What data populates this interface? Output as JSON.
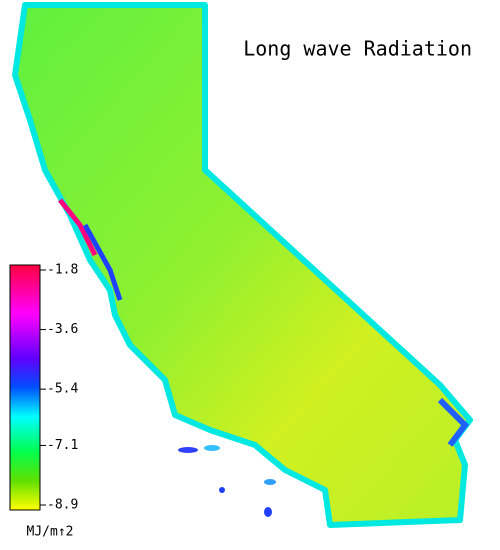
{
  "title": "Long wave Radiation",
  "colorbar": {
    "clim": [
      -8.9,
      -1.8
    ],
    "ticks": [
      -1.8,
      -3.6,
      -5.4,
      -7.1,
      -8.9
    ],
    "label": "MJ/m↑2"
  }
}
